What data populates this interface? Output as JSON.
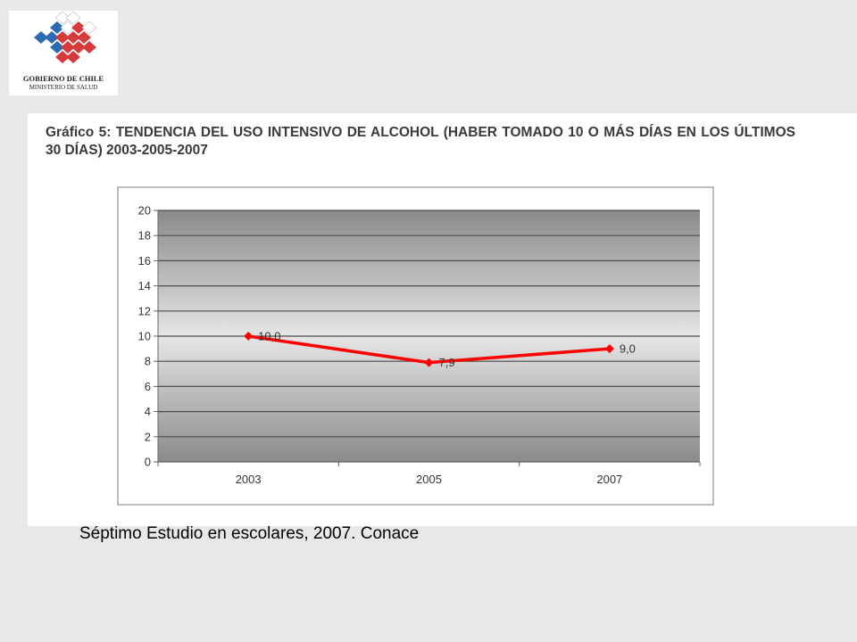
{
  "logo": {
    "line1": "GOBIERNO DE CHILE",
    "line2": "MINISTERIO DE SALUD",
    "colors": {
      "blue": "#2b6cb0",
      "red": "#d63a3a",
      "white": "#ffffff"
    }
  },
  "source_note": "Séptimo Estudio en escolares, 2007.  Conace",
  "chart_data": {
    "type": "line",
    "title": "Gráfico 5: TENDENCIA DEL USO INTENSIVO DE ALCOHOL (HABER TOMADO 10 O MÁS DÍAS EN LOS ÚLTIMOS 30 DÍAS) 2003-2005-2007",
    "categories": [
      "2003",
      "2005",
      "2007"
    ],
    "series": [
      {
        "values": [
          10.0,
          7.9,
          9.0
        ],
        "labels": [
          "10,0",
          "7,9",
          "9,0"
        ],
        "color": "#ff0000"
      }
    ],
    "ylim": [
      0,
      20
    ],
    "yticks": [
      "0",
      "2",
      "4",
      "6",
      "8",
      "10",
      "12",
      "14",
      "16",
      "18",
      "20"
    ],
    "xlabel": "",
    "ylabel": "",
    "grid": true,
    "legend": "none"
  }
}
